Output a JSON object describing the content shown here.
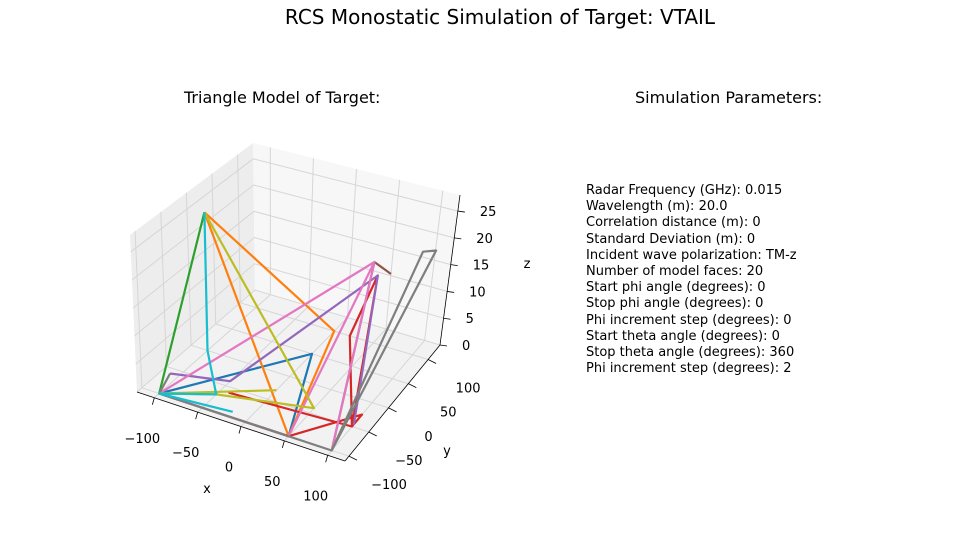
{
  "figure": {
    "title": "RCS Monostatic Simulation of Target: VTAIL"
  },
  "chart_data": {
    "type": "3d-wireframe",
    "title": "Triangle Model of Target:",
    "xlabel": "x",
    "ylabel": "y",
    "zlabel": "z",
    "xlim": [
      -120,
      120
    ],
    "ylim": [
      -110,
      130
    ],
    "zlim": [
      0,
      28
    ],
    "xticks": [
      -100,
      -50,
      0,
      50,
      100
    ],
    "yticks": [
      -100,
      -50,
      0,
      50,
      100
    ],
    "zticks": [
      0,
      5,
      10,
      15,
      20,
      25
    ],
    "grid": true,
    "series": [
      {
        "color": "#1f77b4",
        "points": [
          [
            -100,
            -100,
            0
          ],
          [
            50,
            -100,
            0
          ],
          [
            0,
            50,
            0
          ],
          [
            -100,
            -100,
            0
          ]
        ]
      },
      {
        "color": "#ff7f0e",
        "points": [
          [
            -100,
            0,
            25
          ],
          [
            0,
            100,
            0
          ],
          [
            50,
            -100,
            0
          ],
          [
            -100,
            0,
            25
          ]
        ]
      },
      {
        "color": "#2ca02c",
        "points": [
          [
            -100,
            0,
            25
          ],
          [
            -100,
            -100,
            0
          ],
          [
            -100,
            0,
            25
          ]
        ]
      },
      {
        "color": "#d62728",
        "points": [
          [
            -100,
            -100,
            0
          ],
          [
            50,
            -100,
            0
          ],
          [
            100,
            -25,
            0
          ],
          [
            100,
            -50,
            0
          ],
          [
            -40,
            -60,
            0
          ],
          [
            100,
            -50,
            0
          ],
          [
            100,
            0,
            20
          ],
          [
            20,
            100,
            0
          ],
          [
            100,
            -50,
            0
          ]
        ]
      },
      {
        "color": "#9467bd",
        "points": [
          [
            -110,
            -60,
            0
          ],
          [
            -50,
            -40,
            0
          ],
          [
            100,
            0,
            20
          ],
          [
            100,
            -45,
            0
          ],
          [
            100,
            0,
            20
          ]
        ]
      },
      {
        "color": "#8c564b",
        "points": [
          [
            100,
            -100,
            0
          ],
          [
            80,
            30,
            20
          ],
          [
            110,
            10,
            20
          ]
        ]
      },
      {
        "color": "#e377c2",
        "points": [
          [
            -100,
            -100,
            0
          ],
          [
            80,
            30,
            20
          ],
          [
            50,
            -100,
            0
          ],
          [
            80,
            30,
            20
          ],
          [
            100,
            -100,
            0
          ]
        ]
      },
      {
        "color": "#7f7f7f",
        "points": [
          [
            -110,
            -60,
            0
          ],
          [
            -100,
            -100,
            0
          ],
          [
            100,
            -100,
            0
          ],
          [
            110,
            80,
            20
          ],
          [
            120,
            90,
            20
          ],
          [
            100,
            -100,
            0
          ]
        ]
      },
      {
        "color": "#bcbd22",
        "points": [
          [
            -100,
            0,
            25
          ],
          [
            50,
            -40,
            0
          ],
          [
            -50,
            -70,
            0
          ],
          [
            -100,
            -100,
            0
          ],
          [
            0,
            -30,
            0
          ]
        ]
      },
      {
        "color": "#17becf",
        "points": [
          [
            -100,
            0,
            25
          ],
          [
            -100,
            0,
            0
          ],
          [
            -50,
            -70,
            0
          ],
          [
            -100,
            -100,
            0
          ],
          [
            -20,
            -90,
            0
          ]
        ]
      }
    ]
  },
  "parameters": {
    "title": "Simulation Parameters:",
    "lines": [
      "Radar Frequency (GHz): 0.015",
      "Wavelength (m): 20.0",
      "Correlation distance (m): 0",
      "Standard Deviation (m): 0",
      "Incident wave polarization: TM-z",
      "Number of model faces: 20",
      "Start phi angle (degrees): 0",
      "Stop phi angle (degrees): 0",
      "Phi increment step (degrees): 0",
      "Start theta angle (degrees): 0",
      "Stop theta angle (degrees): 360",
      "Phi increment step (degrees): 2"
    ]
  }
}
